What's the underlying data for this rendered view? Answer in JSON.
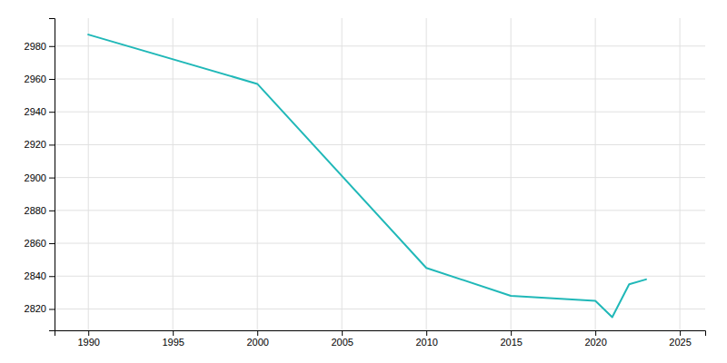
{
  "chart_data": {
    "type": "line",
    "x": [
      1990,
      2000,
      2010,
      2015,
      2020,
      2021,
      2022,
      2023
    ],
    "values": [
      2987,
      2957,
      2845,
      2828,
      2825,
      2815,
      2835,
      2838
    ],
    "color": "#20B8B8",
    "xlim": [
      1988,
      2026.5
    ],
    "ylim": [
      2807,
      2997
    ],
    "xticks": [
      1990,
      1995,
      2000,
      2005,
      2010,
      2015,
      2020,
      2025
    ],
    "yticks": [
      2820,
      2840,
      2860,
      2880,
      2900,
      2920,
      2940,
      2960,
      2980
    ],
    "grid": true
  }
}
